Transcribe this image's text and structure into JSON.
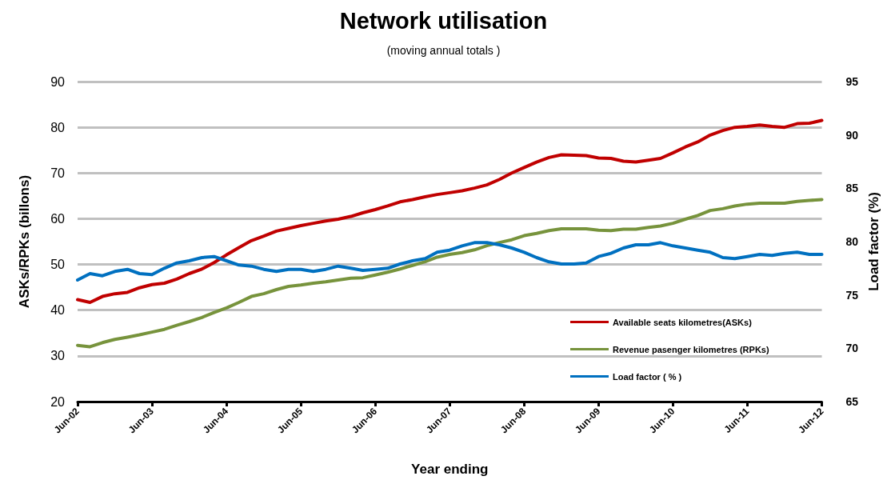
{
  "chart_data": {
    "type": "line",
    "title": "Network utilisation",
    "subtitle": "(moving annual totals )",
    "xlabel": "Year ending",
    "ylabel": "ASKs/RPKs (billons)",
    "y2label": "Load factor (%)",
    "x": [
      "2002-06",
      "2002-08",
      "2002-10",
      "2002-12",
      "2003-02",
      "2003-04",
      "2003-06",
      "2003-08",
      "2003-10",
      "2003-12",
      "2004-02",
      "2004-04",
      "2004-06",
      "2004-08",
      "2004-10",
      "2004-12",
      "2005-02",
      "2005-04",
      "2005-06",
      "2005-08",
      "2005-10",
      "2005-12",
      "2006-02",
      "2006-04",
      "2006-06",
      "2006-08",
      "2006-10",
      "2006-12",
      "2007-02",
      "2007-04",
      "2007-06",
      "2007-08",
      "2007-10",
      "2007-12",
      "2008-02",
      "2008-04",
      "2008-06",
      "2008-08",
      "2008-10",
      "2008-12",
      "2009-02",
      "2009-04",
      "2009-06",
      "2009-08",
      "2009-10",
      "2009-12",
      "2010-02",
      "2010-04",
      "2010-06",
      "2010-08",
      "2010-10",
      "2010-12",
      "2011-02",
      "2011-04",
      "2011-06",
      "2011-08",
      "2011-10",
      "2011-12",
      "2012-02",
      "2012-04",
      "2012-06"
    ],
    "series": [
      {
        "name": "Available seats kilometres(ASKs)",
        "color": "#c00000",
        "values": [
          42.3,
          41.7,
          43.0,
          43.6,
          43.9,
          44.9,
          45.6,
          45.9,
          46.8,
          48.0,
          49.0,
          50.4,
          52.1,
          53.7,
          55.2,
          56.2,
          57.3,
          57.9,
          58.5,
          59.0,
          59.5,
          59.9,
          60.5,
          61.3,
          62.0,
          62.8,
          63.7,
          64.2,
          64.8,
          65.3,
          65.7,
          66.1,
          66.7,
          67.4,
          68.6,
          70.0,
          71.2,
          72.4,
          73.4,
          74.0,
          73.9,
          73.8,
          73.3,
          73.2,
          72.6,
          72.4,
          72.8,
          73.2,
          74.4,
          75.7,
          76.8,
          78.3,
          79.3,
          80.0,
          80.2,
          80.5,
          80.2,
          80.0,
          80.8,
          80.9,
          81.5
        ]
      },
      {
        "name": "Revenue pasenger kilometres (RPKs)",
        "color": "#77933c",
        "values": [
          32.3,
          32.0,
          32.9,
          33.6,
          34.1,
          34.6,
          35.2,
          35.8,
          36.7,
          37.5,
          38.4,
          39.5,
          40.5,
          41.7,
          43.0,
          43.6,
          44.5,
          45.2,
          45.5,
          45.9,
          46.2,
          46.6,
          47.0,
          47.1,
          47.7,
          48.3,
          49.0,
          49.8,
          50.6,
          51.6,
          52.2,
          52.6,
          53.2,
          54.1,
          54.8,
          55.4,
          56.3,
          56.8,
          57.4,
          57.8,
          57.8,
          57.8,
          57.5,
          57.4,
          57.7,
          57.7,
          58.1,
          58.4,
          59.0,
          59.9,
          60.7,
          61.8,
          62.2,
          62.8,
          63.2,
          63.4,
          63.4,
          63.4,
          63.8,
          64.0,
          64.2
        ]
      },
      {
        "name": "Load factor ( % )",
        "color": "#0070c0",
        "axis": "y2",
        "values": [
          76.4,
          77.0,
          76.8,
          77.2,
          77.4,
          77.0,
          76.9,
          77.5,
          78.0,
          78.2,
          78.5,
          78.6,
          78.2,
          77.8,
          77.7,
          77.4,
          77.2,
          77.4,
          77.4,
          77.2,
          77.4,
          77.7,
          77.5,
          77.3,
          77.4,
          77.5,
          77.9,
          78.2,
          78.4,
          79.0,
          79.2,
          79.6,
          79.9,
          79.9,
          79.7,
          79.4,
          79.0,
          78.5,
          78.1,
          77.9,
          77.9,
          78.0,
          78.6,
          78.9,
          79.4,
          79.7,
          79.7,
          79.9,
          79.6,
          79.4,
          79.2,
          79.0,
          78.5,
          78.4,
          78.6,
          78.8,
          78.7,
          78.9,
          79.0,
          78.8,
          78.8
        ]
      }
    ],
    "xlim": [
      "2002-06",
      "2012-06"
    ],
    "xticks": [
      {
        "value": "2002-06",
        "label": "Jun-02"
      },
      {
        "value": "2003-06",
        "label": "Jun-03"
      },
      {
        "value": "2004-06",
        "label": "Jun-04"
      },
      {
        "value": "2005-06",
        "label": "Jun-05"
      },
      {
        "value": "2006-06",
        "label": "Jun-06"
      },
      {
        "value": "2007-06",
        "label": "Jun-07"
      },
      {
        "value": "2008-06",
        "label": "Jun-08"
      },
      {
        "value": "2009-06",
        "label": "Jun-09"
      },
      {
        "value": "2010-06",
        "label": "Jun-10"
      },
      {
        "value": "2011-06",
        "label": "Jun-11"
      },
      {
        "value": "2012-06",
        "label": "Jun-12"
      }
    ],
    "ylim": [
      20,
      90
    ],
    "yticks": [
      20,
      30,
      40,
      50,
      60,
      70,
      80,
      90
    ],
    "y2lim": [
      65,
      95
    ],
    "y2ticks": [
      65,
      70,
      75,
      80,
      85,
      90,
      95
    ],
    "grid": "y",
    "legend": "bottom right",
    "marker": "none",
    "line_style": "solid"
  }
}
